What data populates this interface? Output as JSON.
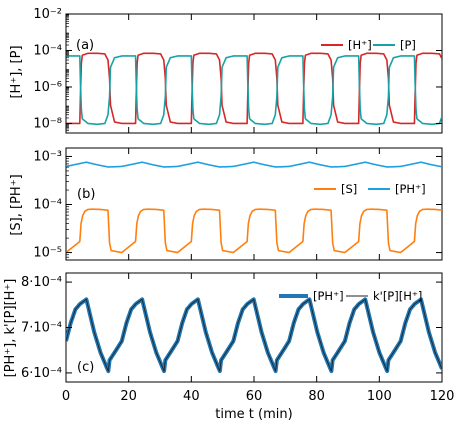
{
  "colors": {
    "h": "#d62728",
    "p": "#17a2a6",
    "s": "#ff7f0e",
    "ph": "#1f9fe0",
    "ph_c": "#1f77b4",
    "kph": "#222222"
  },
  "chart_data": [
    {
      "panel": "(a)",
      "type": "line",
      "ylabel": "[H⁺], [P]",
      "yscale": "log",
      "xlim": [
        0,
        120
      ],
      "ylim": [
        3e-09,
        0.01
      ],
      "yticks": [
        {
          "value": 1e-08,
          "label": "10⁻⁸"
        },
        {
          "value": 1e-06,
          "label": "10⁻⁶"
        },
        {
          "value": 0.0001,
          "label": "10⁻⁴"
        },
        {
          "value": 0.01,
          "label": "10⁻²"
        }
      ],
      "period_min": 17.8,
      "legend_position": "top-right",
      "series": [
        {
          "name": "[H⁺]",
          "color_key": "h",
          "x": [
            0,
            4.4,
            4.6,
            4.9,
            5.2,
            7,
            10,
            12.4,
            13.4,
            13.9,
            14.2,
            15.5,
            17.8
          ],
          "y": [
            1e-08,
            1e-08,
            3e-07,
            2e-05,
            5.5e-05,
            7e-05,
            7e-05,
            6.5e-05,
            3e-05,
            3e-06,
            1e-07,
            1.2e-08,
            1e-08
          ]
        },
        {
          "name": "[P]",
          "color_key": "p",
          "x": [
            0,
            4.4,
            4.6,
            4.9,
            5.2,
            7,
            10,
            12.4,
            13.4,
            13.9,
            14.2,
            15.5,
            17.8
          ],
          "y": [
            5e-05,
            5e-05,
            2e-06,
            6e-08,
            1.8e-08,
            1e-08,
            9e-09,
            1e-08,
            3e-08,
            3e-07,
            1.2e-05,
            4e-05,
            5e-05
          ]
        }
      ]
    },
    {
      "panel": "(b)",
      "type": "line",
      "ylabel": "[S], [PH⁺]",
      "yscale": "log",
      "xlim": [
        0,
        120
      ],
      "ylim": [
        7e-06,
        0.0015
      ],
      "yticks": [
        {
          "value": 1e-05,
          "label": "10⁻⁵"
        },
        {
          "value": 0.0001,
          "label": "10⁻⁴"
        },
        {
          "value": 0.001,
          "label": "10⁻³"
        }
      ],
      "period_min": 17.8,
      "legend_position": "middle-right",
      "series": [
        {
          "name": "[S]",
          "color_key": "s",
          "x": [
            0,
            4.4,
            4.8,
            5.3,
            6,
            7,
            8.5,
            11,
            13.4,
            13.9,
            14.4,
            17.8
          ],
          "y": [
            1e-05,
            1.7e-05,
            4e-05,
            5.8e-05,
            7.2e-05,
            7.9e-05,
            8e-05,
            7.9e-05,
            7.6e-05,
            1.6e-05,
            1.1e-05,
            1e-05
          ]
        },
        {
          "name": "[PH⁺]",
          "color_key": "ph",
          "x": [
            0,
            3,
            6.5,
            10,
            13.4,
            15.5,
            17.8
          ],
          "y": [
            0.00062,
            0.00068,
            0.00076,
            0.00067,
            0.000605,
            0.00061,
            0.00062
          ]
        }
      ]
    },
    {
      "panel": "(c)",
      "type": "line",
      "ylabel": "[PH⁺], k'[P][H⁺]",
      "xlabel": "time t (min)",
      "yscale": "linear",
      "xlim": [
        0,
        120
      ],
      "ylim": [
        0.00058,
        0.00082
      ],
      "xticks": [
        0,
        20,
        40,
        60,
        80,
        100,
        120
      ],
      "yticks": [
        {
          "value": 0.0006,
          "label": "6·10⁻⁴"
        },
        {
          "value": 0.0007,
          "label": "7·10⁻⁴"
        },
        {
          "value": 0.0008,
          "label": "8·10⁻⁴"
        }
      ],
      "period_min": 17.8,
      "legend_position": "top-right",
      "series": [
        {
          "name": "[PH⁺]",
          "color_key": "ph_c",
          "x": [
            0,
            1.5,
            3,
            4.5,
            6.5,
            9,
            11,
            13,
            13.5,
            13.9,
            15.5,
            17.8
          ],
          "y": [
            0.00067,
            0.00071,
            0.00074,
            0.000752,
            0.000762,
            0.00069,
            0.000645,
            0.000612,
            0.000604,
            0.000628,
            0.000645,
            0.00067
          ]
        },
        {
          "name": "k'[P][H⁺]",
          "color_key": "kph",
          "same_as": "[PH⁺]"
        }
      ]
    }
  ]
}
